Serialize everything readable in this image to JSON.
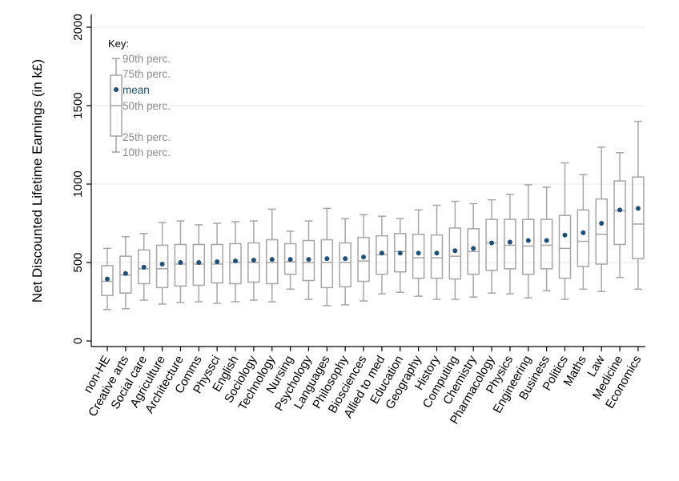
{
  "chart_data": {
    "type": "box",
    "ylabel": "Net Discounted Lifetime Earnings (in k£)",
    "xlabel": "",
    "ylim": [
      0,
      2000
    ],
    "yticks": [
      0,
      500,
      1000,
      1500,
      2000
    ],
    "grid": true,
    "key": {
      "title": "Key:",
      "labels": {
        "p90": "90th perc.",
        "p75": "75th perc.",
        "mean": "mean",
        "p50": "50th perc.",
        "p25": "25th perc.",
        "p10": "10th perc."
      }
    },
    "colors": {
      "box": "#a6a6a6",
      "mean": "#1f4e79",
      "grid": "#eaeaea",
      "axis": "#000000"
    },
    "categories": [
      "non-HE",
      "Creative arts",
      "Social care",
      "Agriculture",
      "Architecture",
      "Comms",
      "Physsci",
      "English",
      "Sociology",
      "Technology",
      "Nursing",
      "Psychology",
      "Languages",
      "Philosophy",
      "Biosciences",
      "Allied to med",
      "Education",
      "Geography",
      "History",
      "Computing",
      "Chemistry",
      "Pharmacology",
      "Physics",
      "Engineering",
      "Business",
      "Politics",
      "Maths",
      "Law",
      "Medicine",
      "Economics"
    ],
    "p10": [
      200,
      205,
      260,
      235,
      245,
      250,
      240,
      250,
      260,
      250,
      330,
      265,
      225,
      230,
      255,
      300,
      310,
      285,
      265,
      265,
      280,
      305,
      300,
      275,
      320,
      265,
      330,
      315,
      405,
      330
    ],
    "p25": [
      290,
      305,
      365,
      340,
      350,
      355,
      370,
      365,
      375,
      365,
      425,
      385,
      340,
      345,
      380,
      425,
      440,
      400,
      400,
      395,
      425,
      450,
      460,
      425,
      460,
      400,
      475,
      490,
      615,
      525
    ],
    "p50": [
      380,
      420,
      460,
      460,
      490,
      490,
      490,
      500,
      500,
      500,
      505,
      500,
      500,
      500,
      510,
      550,
      570,
      530,
      530,
      540,
      570,
      625,
      610,
      605,
      610,
      590,
      635,
      680,
      830,
      745
    ],
    "p75": [
      480,
      540,
      580,
      610,
      615,
      615,
      615,
      620,
      625,
      645,
      620,
      640,
      645,
      625,
      660,
      670,
      685,
      680,
      675,
      720,
      715,
      775,
      775,
      775,
      775,
      800,
      835,
      905,
      1020,
      1045
    ],
    "p90": [
      590,
      665,
      685,
      755,
      765,
      740,
      750,
      760,
      765,
      840,
      700,
      765,
      845,
      780,
      805,
      795,
      780,
      835,
      865,
      890,
      875,
      900,
      935,
      995,
      980,
      1135,
      1060,
      1235,
      1200,
      1400
    ],
    "mean": [
      395,
      430,
      470,
      490,
      500,
      500,
      505,
      510,
      515,
      520,
      520,
      520,
      525,
      525,
      535,
      560,
      560,
      560,
      560,
      575,
      590,
      625,
      630,
      640,
      640,
      675,
      690,
      750,
      835,
      845
    ]
  }
}
